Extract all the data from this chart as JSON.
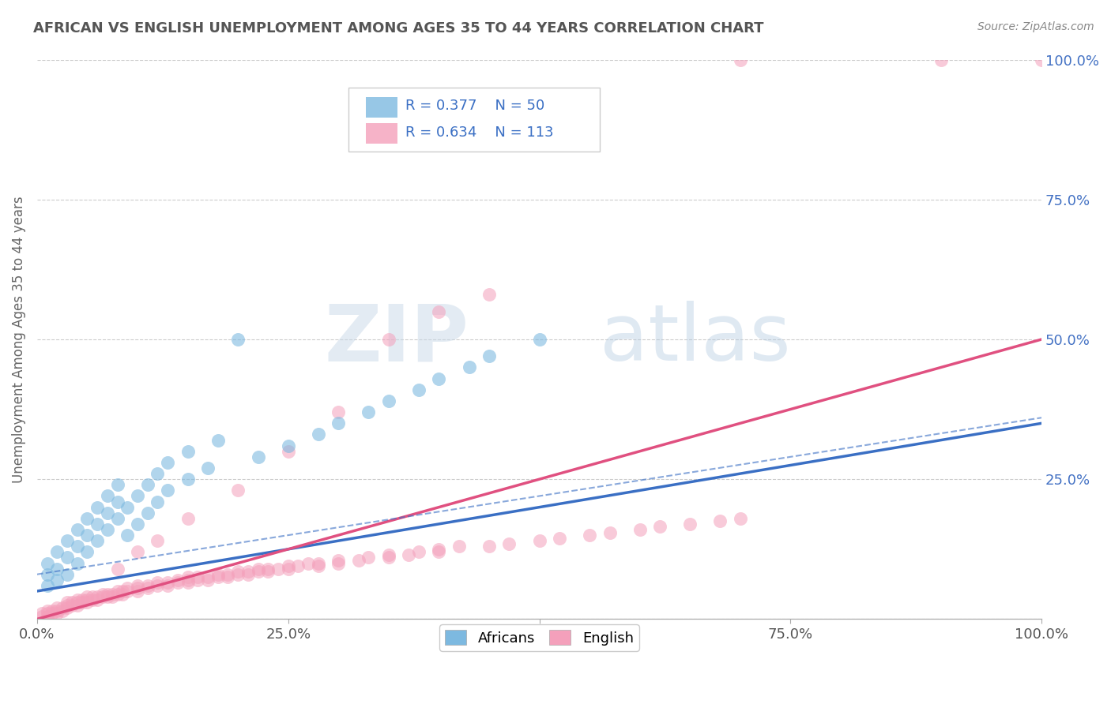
{
  "title": "AFRICAN VS ENGLISH UNEMPLOYMENT AMONG AGES 35 TO 44 YEARS CORRELATION CHART",
  "source": "Source: ZipAtlas.com",
  "ylabel": "Unemployment Among Ages 35 to 44 years",
  "africans_R": 0.377,
  "africans_N": 50,
  "english_R": 0.634,
  "english_N": 113,
  "africans_color": "#7db9e0",
  "english_color": "#f4a0bb",
  "africans_line_color": "#3a6fc4",
  "english_line_color": "#e05080",
  "africans_scatter": [
    [
      0.01,
      0.08
    ],
    [
      0.01,
      0.1
    ],
    [
      0.01,
      0.06
    ],
    [
      0.02,
      0.09
    ],
    [
      0.02,
      0.12
    ],
    [
      0.02,
      0.07
    ],
    [
      0.03,
      0.11
    ],
    [
      0.03,
      0.14
    ],
    [
      0.03,
      0.08
    ],
    [
      0.04,
      0.13
    ],
    [
      0.04,
      0.1
    ],
    [
      0.04,
      0.16
    ],
    [
      0.05,
      0.15
    ],
    [
      0.05,
      0.12
    ],
    [
      0.05,
      0.18
    ],
    [
      0.06,
      0.17
    ],
    [
      0.06,
      0.14
    ],
    [
      0.06,
      0.2
    ],
    [
      0.07,
      0.19
    ],
    [
      0.07,
      0.16
    ],
    [
      0.07,
      0.22
    ],
    [
      0.08,
      0.21
    ],
    [
      0.08,
      0.18
    ],
    [
      0.08,
      0.24
    ],
    [
      0.09,
      0.15
    ],
    [
      0.09,
      0.2
    ],
    [
      0.1,
      0.17
    ],
    [
      0.1,
      0.22
    ],
    [
      0.11,
      0.19
    ],
    [
      0.11,
      0.24
    ],
    [
      0.12,
      0.21
    ],
    [
      0.12,
      0.26
    ],
    [
      0.13,
      0.23
    ],
    [
      0.13,
      0.28
    ],
    [
      0.15,
      0.25
    ],
    [
      0.15,
      0.3
    ],
    [
      0.17,
      0.27
    ],
    [
      0.18,
      0.32
    ],
    [
      0.2,
      0.5
    ],
    [
      0.22,
      0.29
    ],
    [
      0.25,
      0.31
    ],
    [
      0.28,
      0.33
    ],
    [
      0.3,
      0.35
    ],
    [
      0.33,
      0.37
    ],
    [
      0.35,
      0.39
    ],
    [
      0.38,
      0.41
    ],
    [
      0.4,
      0.43
    ],
    [
      0.43,
      0.45
    ],
    [
      0.45,
      0.47
    ],
    [
      0.5,
      0.5
    ]
  ],
  "english_scatter": [
    [
      0.005,
      0.005
    ],
    [
      0.005,
      0.01
    ],
    [
      0.01,
      0.005
    ],
    [
      0.01,
      0.01
    ],
    [
      0.01,
      0.015
    ],
    [
      0.015,
      0.01
    ],
    [
      0.015,
      0.015
    ],
    [
      0.02,
      0.01
    ],
    [
      0.02,
      0.015
    ],
    [
      0.02,
      0.02
    ],
    [
      0.025,
      0.015
    ],
    [
      0.025,
      0.02
    ],
    [
      0.03,
      0.02
    ],
    [
      0.03,
      0.025
    ],
    [
      0.03,
      0.03
    ],
    [
      0.035,
      0.025
    ],
    [
      0.035,
      0.03
    ],
    [
      0.04,
      0.025
    ],
    [
      0.04,
      0.03
    ],
    [
      0.04,
      0.035
    ],
    [
      0.045,
      0.03
    ],
    [
      0.045,
      0.035
    ],
    [
      0.05,
      0.03
    ],
    [
      0.05,
      0.035
    ],
    [
      0.05,
      0.04
    ],
    [
      0.055,
      0.035
    ],
    [
      0.055,
      0.04
    ],
    [
      0.06,
      0.035
    ],
    [
      0.06,
      0.04
    ],
    [
      0.065,
      0.04
    ],
    [
      0.065,
      0.045
    ],
    [
      0.07,
      0.04
    ],
    [
      0.07,
      0.045
    ],
    [
      0.075,
      0.04
    ],
    [
      0.075,
      0.045
    ],
    [
      0.08,
      0.045
    ],
    [
      0.08,
      0.05
    ],
    [
      0.085,
      0.045
    ],
    [
      0.085,
      0.05
    ],
    [
      0.09,
      0.05
    ],
    [
      0.09,
      0.055
    ],
    [
      0.1,
      0.05
    ],
    [
      0.1,
      0.055
    ],
    [
      0.1,
      0.06
    ],
    [
      0.11,
      0.055
    ],
    [
      0.11,
      0.06
    ],
    [
      0.12,
      0.06
    ],
    [
      0.12,
      0.065
    ],
    [
      0.13,
      0.06
    ],
    [
      0.13,
      0.065
    ],
    [
      0.14,
      0.065
    ],
    [
      0.14,
      0.07
    ],
    [
      0.15,
      0.065
    ],
    [
      0.15,
      0.07
    ],
    [
      0.15,
      0.075
    ],
    [
      0.16,
      0.07
    ],
    [
      0.16,
      0.075
    ],
    [
      0.17,
      0.07
    ],
    [
      0.17,
      0.075
    ],
    [
      0.18,
      0.075
    ],
    [
      0.18,
      0.08
    ],
    [
      0.19,
      0.075
    ],
    [
      0.19,
      0.08
    ],
    [
      0.2,
      0.08
    ],
    [
      0.2,
      0.085
    ],
    [
      0.21,
      0.08
    ],
    [
      0.21,
      0.085
    ],
    [
      0.22,
      0.085
    ],
    [
      0.22,
      0.09
    ],
    [
      0.23,
      0.085
    ],
    [
      0.23,
      0.09
    ],
    [
      0.24,
      0.09
    ],
    [
      0.25,
      0.09
    ],
    [
      0.25,
      0.095
    ],
    [
      0.26,
      0.095
    ],
    [
      0.27,
      0.1
    ],
    [
      0.28,
      0.095
    ],
    [
      0.28,
      0.1
    ],
    [
      0.3,
      0.1
    ],
    [
      0.3,
      0.105
    ],
    [
      0.32,
      0.105
    ],
    [
      0.33,
      0.11
    ],
    [
      0.35,
      0.11
    ],
    [
      0.35,
      0.115
    ],
    [
      0.37,
      0.115
    ],
    [
      0.38,
      0.12
    ],
    [
      0.4,
      0.12
    ],
    [
      0.4,
      0.125
    ],
    [
      0.42,
      0.13
    ],
    [
      0.45,
      0.13
    ],
    [
      0.47,
      0.135
    ],
    [
      0.5,
      0.14
    ],
    [
      0.52,
      0.145
    ],
    [
      0.55,
      0.15
    ],
    [
      0.57,
      0.155
    ],
    [
      0.6,
      0.16
    ],
    [
      0.62,
      0.165
    ],
    [
      0.65,
      0.17
    ],
    [
      0.68,
      0.175
    ],
    [
      0.7,
      0.18
    ],
    [
      0.35,
      0.5
    ],
    [
      0.4,
      0.55
    ],
    [
      0.45,
      0.58
    ],
    [
      0.3,
      0.37
    ],
    [
      0.7,
      1.0
    ],
    [
      0.9,
      1.0
    ],
    [
      1.0,
      1.0
    ],
    [
      0.25,
      0.3
    ],
    [
      0.2,
      0.23
    ],
    [
      0.15,
      0.18
    ],
    [
      0.12,
      0.14
    ],
    [
      0.1,
      0.12
    ],
    [
      0.08,
      0.09
    ]
  ],
  "xlim": [
    0,
    1.0
  ],
  "ylim": [
    0,
    1.0
  ],
  "xticks": [
    0.0,
    0.25,
    0.5,
    0.75,
    1.0
  ],
  "yticks": [
    0.0,
    0.25,
    0.5,
    0.75,
    1.0
  ],
  "xticklabels": [
    "0.0%",
    "25.0%",
    "50.0%",
    "75.0%",
    "100.0%"
  ],
  "yticklabels_right": [
    "",
    "25.0%",
    "50.0%",
    "75.0%",
    "100.0%"
  ],
  "watermark_zip": "ZIP",
  "watermark_atlas": "atlas",
  "background_color": "#ffffff",
  "grid_color": "#cccccc"
}
